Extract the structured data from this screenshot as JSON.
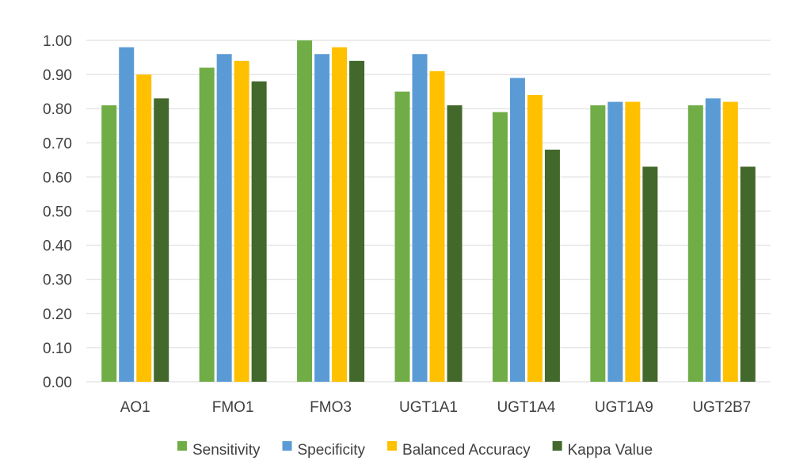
{
  "chart_data": {
    "type": "bar",
    "categories": [
      "AO1",
      "FMO1",
      "FMO3",
      "UGT1A1",
      "UGT1A4",
      "UGT1A9",
      "UGT2B7"
    ],
    "series": [
      {
        "name": "Sensitivity",
        "color": "#70AD47",
        "values": [
          0.81,
          0.92,
          1.0,
          0.85,
          0.79,
          0.81,
          0.81
        ]
      },
      {
        "name": "Specificity",
        "color": "#5B9BD5",
        "values": [
          0.98,
          0.96,
          0.96,
          0.96,
          0.89,
          0.82,
          0.83
        ]
      },
      {
        "name": "Balanced Accuracy",
        "color": "#FFC000",
        "values": [
          0.9,
          0.94,
          0.98,
          0.91,
          0.84,
          0.82,
          0.82
        ]
      },
      {
        "name": "Kappa Value",
        "color": "#43682B",
        "values": [
          0.83,
          0.88,
          0.94,
          0.81,
          0.68,
          0.63,
          0.63
        ]
      }
    ],
    "y_ticks": [
      "0.00",
      "0.10",
      "0.20",
      "0.30",
      "0.40",
      "0.50",
      "0.60",
      "0.70",
      "0.80",
      "0.90",
      "1.00"
    ],
    "ylim": [
      0,
      1
    ],
    "grid": true,
    "legend_position": "bottom",
    "title": "",
    "xlabel": "",
    "ylabel": "",
    "gridline_color": "#D9D9D9"
  }
}
